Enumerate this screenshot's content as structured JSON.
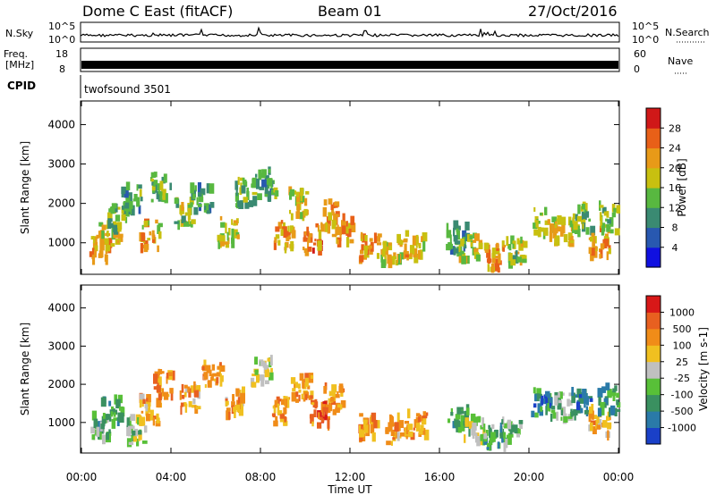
{
  "header": {
    "title": "Dome C East (fitACF)",
    "beam": "Beam 01",
    "date": "27/Oct/2016"
  },
  "strips": {
    "nsky": {
      "label": "N.Sky",
      "top_tick": "10^5",
      "bottom_tick": "10^0",
      "right_top_tick": "10^5",
      "right_bottom_tick": "10^0",
      "right_label": "N.Search"
    },
    "freq": {
      "label_line1": "Freq.",
      "label_line2": "[MHz]",
      "top_tick": "18",
      "bottom_tick": "8",
      "right_top_tick": "60",
      "right_bottom_tick": "0",
      "right_label": "Nave"
    },
    "cpid": {
      "label": "CPID",
      "program": "twofsound 3501"
    }
  },
  "chart_data": [
    {
      "type": "heatmap",
      "name": "power",
      "ylabel": "Slant Range [km]",
      "yticks": [
        "1000",
        "2000",
        "3000",
        "4000"
      ],
      "ylim": [
        200,
        4600
      ],
      "colorbar_label": "Power [dB]",
      "colorbar_ticks": [
        "4",
        "8",
        "12",
        "16",
        "20",
        "24",
        "28"
      ],
      "colorbar_colors": [
        "#1010e0",
        "#2858b0",
        "#3a8a72",
        "#58b840",
        "#c8c010",
        "#e89a18",
        "#e86018",
        "#d01818"
      ],
      "clusters": [
        {
          "t": 0.8,
          "r": 900,
          "v": 0.75
        },
        {
          "t": 1.2,
          "r": 1200,
          "v": 0.6
        },
        {
          "t": 1.6,
          "r": 1600,
          "v": 0.45
        },
        {
          "t": 2.2,
          "r": 2100,
          "v": 0.35
        },
        {
          "t": 3.0,
          "r": 1200,
          "v": 0.65
        },
        {
          "t": 3.5,
          "r": 2400,
          "v": 0.4
        },
        {
          "t": 4.5,
          "r": 1800,
          "v": 0.5
        },
        {
          "t": 5.3,
          "r": 2100,
          "v": 0.35
        },
        {
          "t": 6.5,
          "r": 1300,
          "v": 0.55
        },
        {
          "t": 7.2,
          "r": 2300,
          "v": 0.4
        },
        {
          "t": 8.2,
          "r": 2500,
          "v": 0.35
        },
        {
          "t": 9.0,
          "r": 1200,
          "v": 0.7
        },
        {
          "t": 9.6,
          "r": 2000,
          "v": 0.6
        },
        {
          "t": 10.3,
          "r": 1100,
          "v": 0.8
        },
        {
          "t": 11.0,
          "r": 1700,
          "v": 0.75
        },
        {
          "t": 11.6,
          "r": 1300,
          "v": 0.7
        },
        {
          "t": 12.8,
          "r": 900,
          "v": 0.7
        },
        {
          "t": 13.8,
          "r": 800,
          "v": 0.6
        },
        {
          "t": 14.8,
          "r": 900,
          "v": 0.65
        },
        {
          "t": 16.7,
          "r": 1100,
          "v": 0.35
        },
        {
          "t": 17.3,
          "r": 900,
          "v": 0.55
        },
        {
          "t": 18.4,
          "r": 600,
          "v": 0.75
        },
        {
          "t": 19.3,
          "r": 800,
          "v": 0.5
        },
        {
          "t": 20.6,
          "r": 1500,
          "v": 0.55
        },
        {
          "t": 21.5,
          "r": 1300,
          "v": 0.6
        },
        {
          "t": 22.3,
          "r": 1600,
          "v": 0.45
        },
        {
          "t": 23.1,
          "r": 1000,
          "v": 0.7
        },
        {
          "t": 23.5,
          "r": 1600,
          "v": 0.5
        }
      ]
    },
    {
      "type": "heatmap",
      "name": "velocity",
      "ylabel": "Slant Range [km]",
      "yticks": [
        "1000",
        "2000",
        "3000",
        "4000"
      ],
      "ylim": [
        200,
        4600
      ],
      "colorbar_label": "Velocity [m s-1]",
      "colorbar_ticks": [
        "1000",
        "500",
        "100",
        "25",
        "-25",
        "-100",
        "-500",
        "-1000"
      ],
      "colorbar_colors": [
        "#1a40c8",
        "#2a7aa8",
        "#3a9060",
        "#58c038",
        "#c0c0c0",
        "#f0c020",
        "#f08c18",
        "#e86020",
        "#d81818"
      ],
      "clusters": [
        {
          "t": 0.8,
          "r": 900,
          "v": 0.35
        },
        {
          "t": 1.3,
          "r": 1300,
          "v": 0.3
        },
        {
          "t": 2.4,
          "r": 800,
          "v": 0.45
        },
        {
          "t": 3.0,
          "r": 1300,
          "v": 0.7
        },
        {
          "t": 3.6,
          "r": 2000,
          "v": 0.75
        },
        {
          "t": 4.8,
          "r": 1600,
          "v": 0.72
        },
        {
          "t": 5.8,
          "r": 2200,
          "v": 0.72
        },
        {
          "t": 6.8,
          "r": 1500,
          "v": 0.7
        },
        {
          "t": 8.0,
          "r": 2300,
          "v": 0.5
        },
        {
          "t": 8.8,
          "r": 1300,
          "v": 0.75
        },
        {
          "t": 9.8,
          "r": 1900,
          "v": 0.72
        },
        {
          "t": 10.6,
          "r": 1200,
          "v": 0.82
        },
        {
          "t": 11.2,
          "r": 1600,
          "v": 0.78
        },
        {
          "t": 12.8,
          "r": 900,
          "v": 0.74
        },
        {
          "t": 14.0,
          "r": 800,
          "v": 0.72
        },
        {
          "t": 14.9,
          "r": 900,
          "v": 0.74
        },
        {
          "t": 16.8,
          "r": 1100,
          "v": 0.3
        },
        {
          "t": 17.5,
          "r": 800,
          "v": 0.45
        },
        {
          "t": 18.4,
          "r": 600,
          "v": 0.3
        },
        {
          "t": 19.2,
          "r": 700,
          "v": 0.35
        },
        {
          "t": 20.5,
          "r": 1500,
          "v": 0.2
        },
        {
          "t": 21.4,
          "r": 1400,
          "v": 0.35
        },
        {
          "t": 22.3,
          "r": 1500,
          "v": 0.15
        },
        {
          "t": 23.1,
          "r": 1000,
          "v": 0.7
        },
        {
          "t": 23.5,
          "r": 1600,
          "v": 0.25
        }
      ]
    }
  ],
  "xaxis": {
    "label": "Time UT",
    "ticks": [
      "00:00",
      "04:00",
      "08:00",
      "12:00",
      "16:00",
      "20:00",
      "00:00"
    ]
  }
}
